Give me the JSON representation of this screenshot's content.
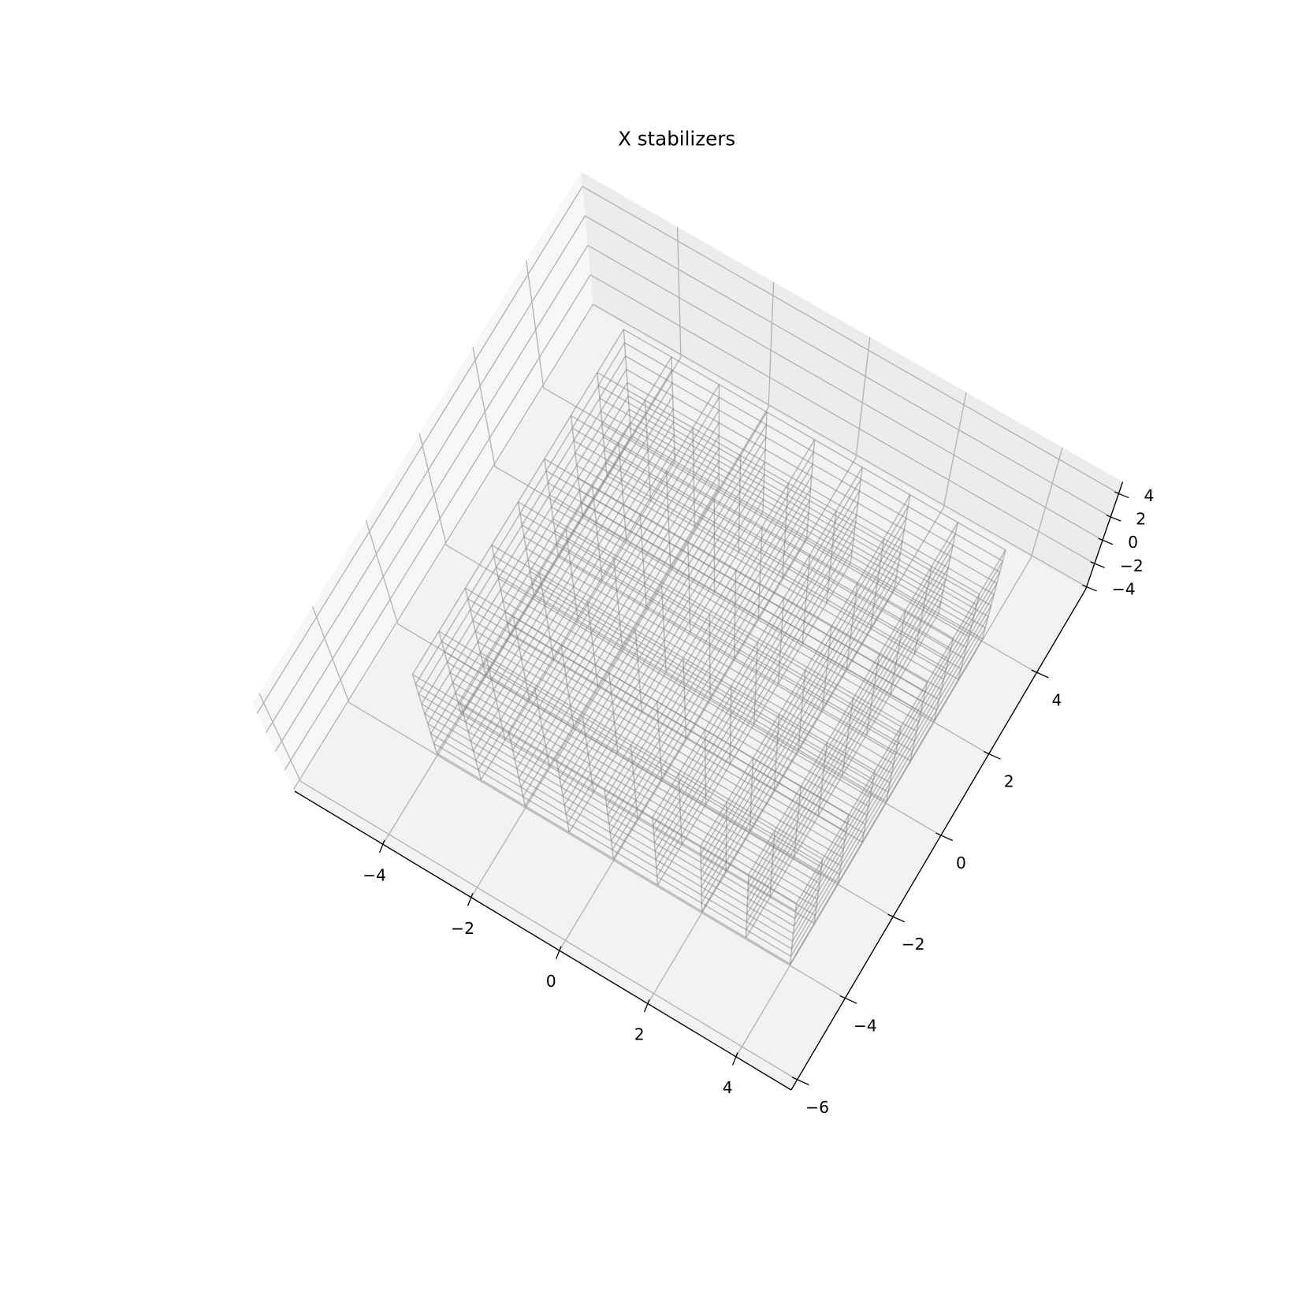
{
  "chart_data": {
    "type": "3d-wireframe",
    "title": "X stabilizers",
    "xlim": [
      -6.0,
      5.25
    ],
    "ylim": [
      -6.25,
      6.05
    ],
    "zlim": [
      -4.2,
      5.0
    ],
    "xticks": [
      {
        "value": -4,
        "label": "−4"
      },
      {
        "value": -2,
        "label": "−2"
      },
      0,
      2,
      4
    ],
    "yticks": [
      {
        "value": -6,
        "label": "−6"
      },
      {
        "value": -4,
        "label": "−4"
      },
      {
        "value": -2,
        "label": "−2"
      },
      0,
      2,
      4
    ],
    "zticks": [
      {
        "value": -4,
        "label": "−4"
      },
      {
        "value": -2,
        "label": "−2"
      },
      0,
      2,
      4
    ],
    "grid": true,
    "lattice": {
      "color": "#808080",
      "x": [
        -4,
        -3,
        -2,
        -1,
        0,
        1,
        2,
        3,
        4
      ],
      "y": [
        -4,
        -3,
        -2,
        -1,
        0,
        1,
        2,
        3,
        4
      ],
      "z": [
        -4,
        -3,
        -2,
        -1,
        0,
        1,
        2,
        3,
        4
      ]
    }
  }
}
